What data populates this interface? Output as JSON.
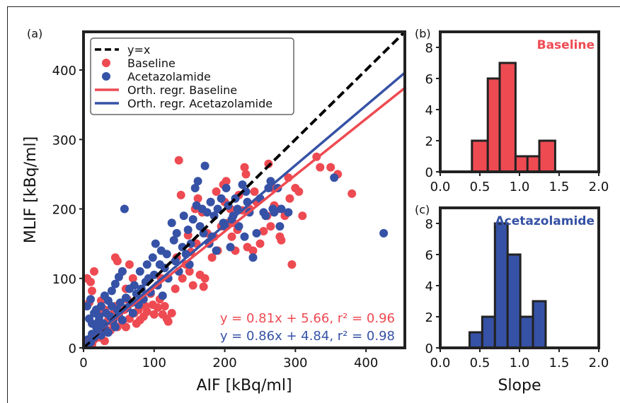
{
  "colors": {
    "baseline": "#ee4a52",
    "acetazolamide": "#3652a6",
    "identity": "#000000",
    "axis": "#222222"
  },
  "chart_data": [
    {
      "panel_label": "(a)",
      "type": "scatter",
      "xlabel": "AIF [kBq/ml]",
      "ylabel": "MLIF [kBq/ml]",
      "xlim": [
        0,
        455
      ],
      "ylim": [
        0,
        455
      ],
      "xticks": [
        0,
        100,
        200,
        300,
        400
      ],
      "yticks": [
        0,
        100,
        200,
        300,
        400
      ],
      "grid": false,
      "legend_position": "top-left",
      "legend": [
        {
          "label": "y=x",
          "kind": "dashed-line",
          "color": "#000000"
        },
        {
          "label": "Baseline",
          "kind": "marker",
          "color": "#ee4a52"
        },
        {
          "label": "Acetazolamide",
          "kind": "marker",
          "color": "#3652a6"
        },
        {
          "label": "Orth. regr. Baseline",
          "kind": "line",
          "color": "#ee4a52"
        },
        {
          "label": "Orth. regr. Acetazolamide",
          "kind": "line",
          "color": "#3652a6"
        }
      ],
      "lines": [
        {
          "name": "y=x",
          "slope": 1.0,
          "intercept": 0,
          "style": "dashed",
          "color": "#000000"
        },
        {
          "name": "Orth. regr. Baseline",
          "slope": 0.81,
          "intercept": 5.66,
          "style": "solid",
          "color": "#ee4a52"
        },
        {
          "name": "Orth. regr. Acetazolamide",
          "slope": 0.86,
          "intercept": 4.84,
          "style": "solid",
          "color": "#3652a6"
        }
      ],
      "annotations": [
        {
          "text": "y = 0.81x + 5.66, r² = 0.96",
          "color": "#ee4a52"
        },
        {
          "text": "y = 0.86x + 4.84, r² = 0.98",
          "color": "#3652a6"
        }
      ],
      "series": [
        {
          "name": "Baseline",
          "color": "#ee4a52",
          "points": [
            [
              5,
              3
            ],
            [
              8,
              8
            ],
            [
              12,
              5
            ],
            [
              15,
              12
            ],
            [
              18,
              20
            ],
            [
              22,
              15
            ],
            [
              25,
              30
            ],
            [
              28,
              22
            ],
            [
              30,
              10
            ],
            [
              35,
              40
            ],
            [
              38,
              25
            ],
            [
              40,
              48
            ],
            [
              42,
              35
            ],
            [
              45,
              60
            ],
            [
              48,
              30
            ],
            [
              50,
              45
            ],
            [
              55,
              38
            ],
            [
              58,
              55
            ],
            [
              60,
              30
            ],
            [
              62,
              70
            ],
            [
              65,
              42
            ],
            [
              70,
              100
            ],
            [
              72,
              50
            ],
            [
              75,
              35
            ],
            [
              78,
              55
            ],
            [
              80,
              40
            ],
            [
              82,
              70
            ],
            [
              85,
              45
            ],
            [
              88,
              60
            ],
            [
              90,
              52
            ],
            [
              95,
              78
            ],
            [
              98,
              62
            ],
            [
              100,
              48
            ],
            [
              105,
              58
            ],
            [
              108,
              70
            ],
            [
              110,
              100
            ],
            [
              112,
              48
            ],
            [
              115,
              60
            ],
            [
              118,
              42
            ],
            [
              120,
              38
            ],
            [
              125,
              50
            ],
            [
              130,
              85
            ],
            [
              132,
              130
            ],
            [
              135,
              270
            ],
            [
              138,
              220
            ],
            [
              140,
              100
            ],
            [
              145,
              120
            ],
            [
              148,
              162
            ],
            [
              150,
              110
            ],
            [
              152,
              138
            ],
            [
              155,
              90
            ],
            [
              158,
              200
            ],
            [
              160,
              150
            ],
            [
              162,
              215
            ],
            [
              165,
              105
            ],
            [
              168,
              195
            ],
            [
              170,
              88
            ],
            [
              172,
              100
            ],
            [
              175,
              165
            ],
            [
              178,
              150
            ],
            [
              180,
              210
            ],
            [
              182,
              130
            ],
            [
              185,
              160
            ],
            [
              188,
              225
            ],
            [
              190,
              140
            ],
            [
              195,
              175
            ],
            [
              198,
              235
            ],
            [
              200,
              210
            ],
            [
              202,
              240
            ],
            [
              205,
              180
            ],
            [
              208,
              200
            ],
            [
              210,
              160
            ],
            [
              212,
              180
            ],
            [
              215,
              140
            ],
            [
              218,
              170
            ],
            [
              220,
              220
            ],
            [
              225,
              198
            ],
            [
              228,
              260
            ],
            [
              230,
              250
            ],
            [
              232,
              145
            ],
            [
              235,
              200
            ],
            [
              240,
              140
            ],
            [
              242,
              225
            ],
            [
              245,
              210
            ],
            [
              250,
              150
            ],
            [
              255,
              168
            ],
            [
              260,
              190
            ],
            [
              262,
              265
            ],
            [
              265,
              175
            ],
            [
              268,
              230
            ],
            [
              270,
              205
            ],
            [
              275,
              200
            ],
            [
              278,
              160
            ],
            [
              280,
              155
            ],
            [
              285,
              190
            ],
            [
              290,
              245
            ],
            [
              292,
              215
            ],
            [
              295,
              120
            ],
            [
              300,
              230
            ],
            [
              305,
              225
            ],
            [
              310,
              190
            ],
            [
              330,
              275
            ],
            [
              335,
              260
            ],
            [
              350,
              260
            ],
            [
              360,
              250
            ],
            [
              380,
              222
            ],
            [
              10,
              95
            ],
            [
              12,
              82
            ],
            [
              8,
              65
            ],
            [
              5,
              100
            ],
            [
              15,
              110
            ],
            [
              20,
              50
            ],
            [
              25,
              68
            ],
            [
              30,
              55
            ],
            [
              45,
              130
            ],
            [
              48,
              125
            ],
            [
              55,
              110
            ],
            [
              60,
              85
            ],
            [
              65,
              120
            ]
          ]
        },
        {
          "name": "Acetazolamide",
          "color": "#3652a6",
          "points": [
            [
              3,
              5
            ],
            [
              6,
              12
            ],
            [
              10,
              8
            ],
            [
              12,
              20
            ],
            [
              15,
              15
            ],
            [
              18,
              30
            ],
            [
              20,
              25
            ],
            [
              22,
              40
            ],
            [
              25,
              18
            ],
            [
              28,
              35
            ],
            [
              30,
              28
            ],
            [
              32,
              50
            ],
            [
              35,
              22
            ],
            [
              38,
              45
            ],
            [
              40,
              60
            ],
            [
              42,
              38
            ],
            [
              45,
              30
            ],
            [
              48,
              55
            ],
            [
              50,
              48
            ],
            [
              52,
              65
            ],
            [
              55,
              40
            ],
            [
              58,
              200
            ],
            [
              60,
              72
            ],
            [
              62,
              58
            ],
            [
              65,
              85
            ],
            [
              68,
              65
            ],
            [
              70,
              50
            ],
            [
              72,
              90
            ],
            [
              75,
              78
            ],
            [
              78,
              62
            ],
            [
              80,
              110
            ],
            [
              82,
              85
            ],
            [
              85,
              70
            ],
            [
              88,
              95
            ],
            [
              90,
              120
            ],
            [
              92,
              100
            ],
            [
              95,
              80
            ],
            [
              98,
              130
            ],
            [
              100,
              105
            ],
            [
              102,
              150
            ],
            [
              105,
              90
            ],
            [
              108,
              120
            ],
            [
              110,
              140
            ],
            [
              112,
              75
            ],
            [
              115,
              115
            ],
            [
              118,
              135
            ],
            [
              120,
              100
            ],
            [
              125,
              180
            ],
            [
              128,
              155
            ],
            [
              130,
              125
            ],
            [
              132,
              165
            ],
            [
              135,
              110
            ],
            [
              140,
              145
            ],
            [
              142,
              190
            ],
            [
              145,
              135
            ],
            [
              148,
              170
            ],
            [
              150,
              120
            ],
            [
              152,
              150
            ],
            [
              155,
              185
            ],
            [
              158,
              230
            ],
            [
              160,
              205
            ],
            [
              162,
              240
            ],
            [
              165,
              175
            ],
            [
              168,
              200
            ],
            [
              170,
              165
            ],
            [
              172,
              262
            ],
            [
              175,
              195
            ],
            [
              178,
              150
            ],
            [
              180,
              210
            ],
            [
              182,
              160
            ],
            [
              185,
              190
            ],
            [
              188,
              140
            ],
            [
              190,
              200
            ],
            [
              195,
              215
            ],
            [
              198,
              180
            ],
            [
              200,
              175
            ],
            [
              202,
              230
            ],
            [
              205,
              205
            ],
            [
              208,
              145
            ],
            [
              210,
              185
            ],
            [
              212,
              190
            ],
            [
              215,
              215
            ],
            [
              218,
              200
            ],
            [
              220,
              175
            ],
            [
              225,
              235
            ],
            [
              228,
              160
            ],
            [
              230,
              225
            ],
            [
              232,
              210
            ],
            [
              235,
              195
            ],
            [
              240,
              130
            ],
            [
              245,
              165
            ],
            [
              250,
              215
            ],
            [
              255,
              195
            ],
            [
              258,
              190
            ],
            [
              262,
              230
            ],
            [
              265,
              240
            ],
            [
              268,
              200
            ],
            [
              270,
              195
            ],
            [
              275,
              230
            ],
            [
              278,
              175
            ],
            [
              280,
              200
            ],
            [
              290,
              195
            ],
            [
              355,
              245
            ],
            [
              425,
              165
            ],
            [
              8,
              42
            ],
            [
              12,
              35
            ],
            [
              15,
              50
            ],
            [
              18,
              55
            ],
            [
              22,
              45
            ],
            [
              5,
              60
            ],
            [
              10,
              70
            ],
            [
              25,
              60
            ],
            [
              30,
              75
            ],
            [
              35,
              68
            ],
            [
              40,
              82
            ],
            [
              45,
              92
            ],
            [
              50,
              102
            ],
            [
              55,
              110
            ]
          ]
        }
      ]
    },
    {
      "panel_label": "(b)",
      "type": "bar",
      "title": "Baseline",
      "xlabel": "",
      "xlim": [
        0.0,
        2.0
      ],
      "ylim": [
        0,
        9
      ],
      "xtick_labels": [
        "0.0",
        "0.5",
        "1.0",
        "1.5",
        "2.0"
      ],
      "ytick_labels": [
        "0",
        "2",
        "4",
        "6",
        "8"
      ],
      "bin_width": 0.2,
      "bins": [
        {
          "x": 0.5,
          "count": 2
        },
        {
          "x": 0.7,
          "count": 6
        },
        {
          "x": 0.85,
          "count": 7
        },
        {
          "x": 1.05,
          "count": 1
        },
        {
          "x": 1.2,
          "count": 1
        },
        {
          "x": 1.35,
          "count": 2
        }
      ],
      "color": "#ee4a52"
    },
    {
      "panel_label": "(c)",
      "type": "bar",
      "title": "Acetazolamide",
      "xlabel": "Slope",
      "xlim": [
        0.0,
        2.0
      ],
      "ylim": [
        0,
        9
      ],
      "xtick_labels": [
        "0.0",
        "0.5",
        "1.0",
        "1.5",
        "2.0"
      ],
      "ytick_labels": [
        "0",
        "2",
        "4",
        "6",
        "8"
      ],
      "bin_width": 0.16,
      "bins": [
        {
          "x": 0.45,
          "count": 1
        },
        {
          "x": 0.61,
          "count": 2
        },
        {
          "x": 0.77,
          "count": 8
        },
        {
          "x": 0.93,
          "count": 6
        },
        {
          "x": 1.09,
          "count": 2
        },
        {
          "x": 1.25,
          "count": 3
        }
      ],
      "color": "#3652a6"
    }
  ]
}
